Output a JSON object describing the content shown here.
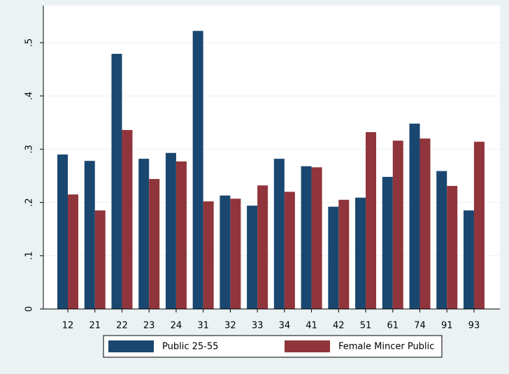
{
  "chart_data": {
    "type": "bar",
    "categories": [
      "12",
      "21",
      "22",
      "23",
      "24",
      "31",
      "32",
      "33",
      "34",
      "41",
      "42",
      "51",
      "61",
      "74",
      "91",
      "93"
    ],
    "series": [
      {
        "name": "Public 25-55",
        "color": "#1a476f",
        "values": [
          0.29,
          0.278,
          0.479,
          0.282,
          0.293,
          0.522,
          0.213,
          0.194,
          0.282,
          0.268,
          0.192,
          0.209,
          0.248,
          0.348,
          0.259,
          0.185
        ]
      },
      {
        "name": "Female Mincer Public",
        "color": "#90353b",
        "values": [
          0.215,
          0.185,
          0.336,
          0.244,
          0.277,
          0.202,
          0.207,
          0.232,
          0.22,
          0.266,
          0.205,
          0.332,
          0.316,
          0.32,
          0.231,
          0.314
        ]
      }
    ],
    "ylim": [
      0,
      0.5
    ],
    "yticks": [
      0,
      {
        "value": 0.1,
        "label": ".1"
      },
      {
        "value": 0.2,
        "label": ".2"
      },
      {
        "value": 0.3,
        "label": ".3"
      },
      {
        "value": 0.4,
        "label": ".4"
      },
      {
        "value": 0.5,
        "label": ".5"
      }
    ],
    "grid": true
  }
}
